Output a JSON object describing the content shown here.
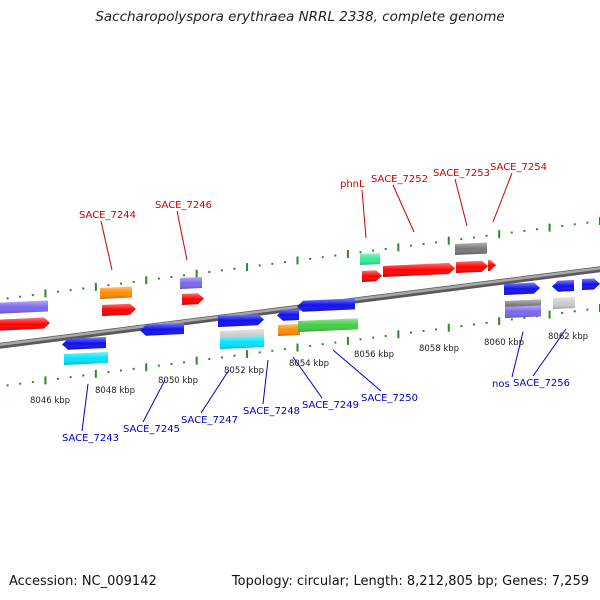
{
  "title": "Saccharopolyspora erythraea NRRL 2338, complete genome",
  "footer": {
    "accession": "Accession: NC_009142",
    "topology": "Topology: circular; Length: 8,212,805 bp; Genes: 7,259"
  },
  "colors": {
    "backbone": "#8a8a8a",
    "tick_green": "#2a8a2a",
    "label_top": "#cc0000",
    "label_bottom": "#0000cc",
    "red": "#ff0000",
    "blue": "#1010ee",
    "orange": "#ff8c00",
    "cyan": "#00e5ff",
    "purple": "#7b68ee",
    "gray": "#777777",
    "mint": "#33ee99",
    "green": "#44cc44",
    "lightgray": "#cccccc"
  },
  "ruler": {
    "unit": "kbp",
    "ticks": [
      "8046 kbp",
      "8048 kbp",
      "8050 kbp",
      "8052 kbp",
      "8054 kbp",
      "8056 kbp",
      "8058 kbp",
      "8060 kbp",
      "8062 kbp"
    ]
  },
  "genes_top": [
    "SACE_7244",
    "SACE_7246",
    "phnL",
    "SACE_7252",
    "SACE_7253",
    "SACE_7254"
  ],
  "genes_bottom": [
    "SACE_7243",
    "SACE_7245",
    "SACE_7247",
    "SACE_7248",
    "SACE_7249",
    "SACE_7250",
    "nos",
    "SACE_7256"
  ]
}
